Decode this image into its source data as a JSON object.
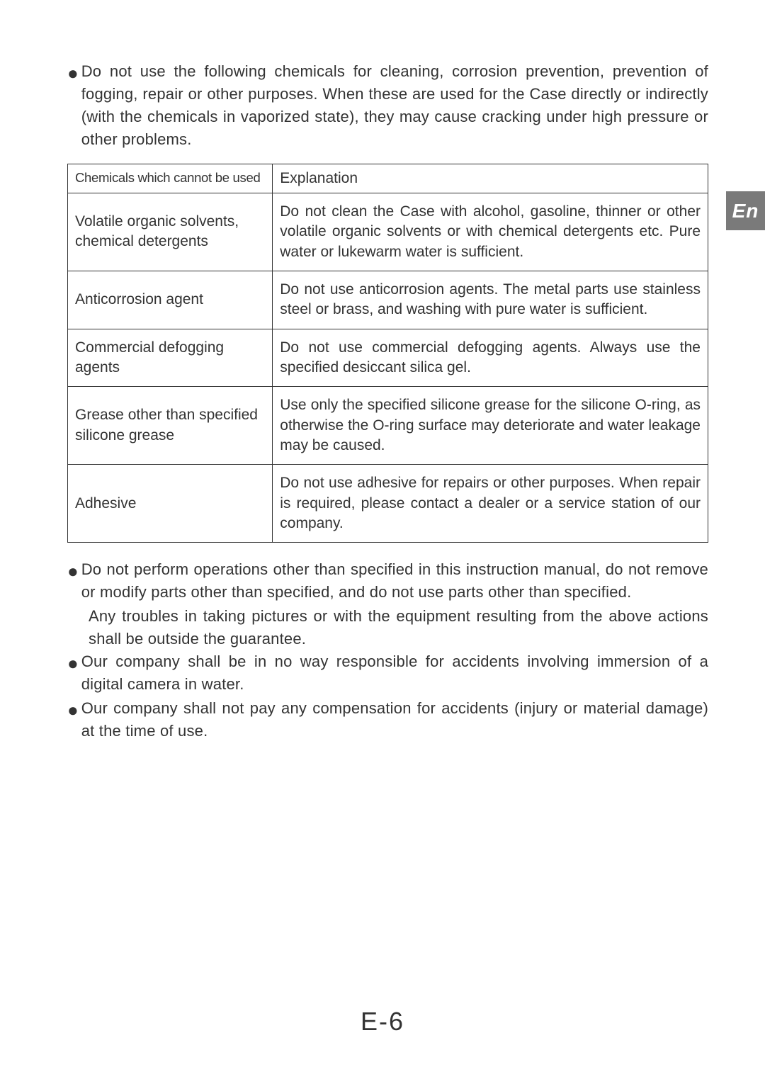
{
  "langTab": "En",
  "pageNumber": "E-6",
  "introBullet": "Do not use the following chemicals for cleaning, corrosion prevention, prevention of fogging, repair or other purposes. When these are used for the Case directly or indirectly (with the chemicals in vaporized state), they may cause cracking under high pressure or other problems.",
  "table": {
    "header": {
      "left": "Chemicals which cannot be used",
      "right": "Explanation"
    },
    "rows": [
      {
        "chemical": "Volatile organic solvents, chemical detergents",
        "explanation": "Do not clean the Case with alcohol, gasoline, thinner or other volatile organic solvents or with chemical detergents etc. Pure water or lukewarm water is sufficient."
      },
      {
        "chemical": "Anticorrosion agent",
        "explanation": "Do not use anticorrosion agents. The metal parts use stainless steel or brass, and washing with pure water is sufficient."
      },
      {
        "chemical": "Commercial defogging agents",
        "explanation": "Do not use commercial defogging agents. Always use the specified desiccant silica gel."
      },
      {
        "chemical": "Grease other than specified silicone grease",
        "explanation": "Use only the specified silicone grease for the silicone O-ring, as otherwise the O-ring surface may deteriorate and water leakage may be caused."
      },
      {
        "chemical": "Adhesive",
        "explanation": "Do not use adhesive for repairs or other purposes. When repair is required, please contact a dealer or a service station of our company."
      }
    ]
  },
  "bullets": [
    {
      "main": "Do not perform operations other than specified in this instruction manual, do not remove or modify parts other than specified, and do not use parts other than specified.",
      "sub": "Any troubles in taking pictures or with the equipment resulting from the above actions shall be outside the guarantee."
    },
    {
      "main": "Our company shall be in no way responsible for accidents involving immersion of a digital camera in water."
    },
    {
      "main": "Our company shall not pay any compensation for accidents (injury or material damage) at the time of use."
    }
  ]
}
